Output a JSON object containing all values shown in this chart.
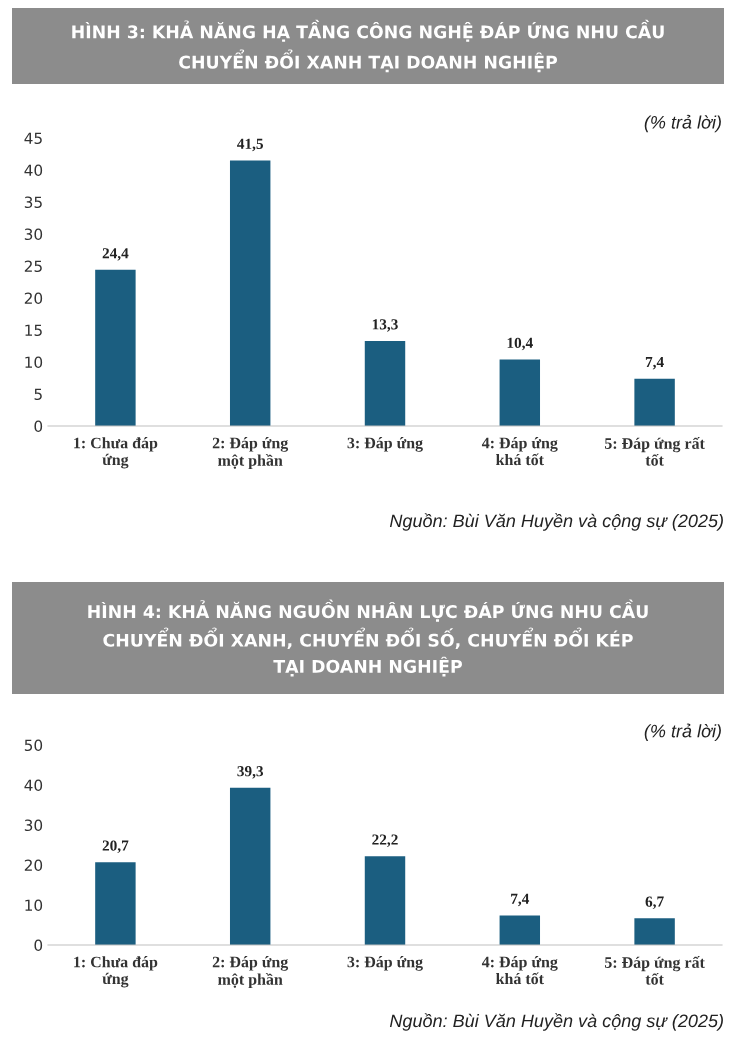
{
  "chart_data": [
    {
      "type": "bar",
      "title": "HÌNH 3: KHẢ NĂNG HẠ TẦNG CÔNG NGHỆ ĐÁP ỨNG NHU CẦU\nCHUYỂN ĐỔI XANH TẠI DOANH NGHIỆP",
      "categories": [
        "1: Chưa đáp\nứng",
        "2: Đáp ứng\nmột phần",
        "3: Đáp ứng",
        "4: Đáp ứng\nkhá tốt",
        "5: Đáp ứng rất\ntốt"
      ],
      "values": [
        24.4,
        41.5,
        13.3,
        10.4,
        7.4
      ],
      "value_labels": [
        "24,4",
        "41,5",
        "13,3",
        "10,4",
        "7,4"
      ],
      "color": "#1b5e80",
      "ylim": [
        0,
        45
      ],
      "yticks": [
        0,
        5,
        10,
        15,
        20,
        25,
        30,
        35,
        40,
        45
      ],
      "grid": false,
      "annotations": [
        "(% trả lời)",
        "Nguồn: Bùi Văn Huyền và cộng sự (2025)"
      ]
    },
    {
      "type": "bar",
      "title": "HÌNH 4: KHẢ NĂNG NGUỒN NHÂN LỰC ĐÁP ỨNG NHU CẦU\nCHUYỂN ĐỔI XANH, CHUYỂN ĐỔI SỐ, CHUYỂN ĐỔI KÉP\nTẠI DOANH NGHIỆP",
      "categories": [
        "1: Chưa đáp\nứng",
        "2: Đáp ứng\nmột phần",
        "3: Đáp ứng",
        "4: Đáp ứng\nkhá tốt",
        "5: Đáp ứng rất\ntốt"
      ],
      "values": [
        20.7,
        39.3,
        22.2,
        7.4,
        6.7
      ],
      "value_labels": [
        "20,7",
        "39,3",
        "22,2",
        "7,4",
        "6,7"
      ],
      "color": "#1b5e80",
      "ylim": [
        0,
        50
      ],
      "yticks": [
        0,
        10,
        20,
        30,
        40,
        50
      ],
      "grid": false,
      "annotations": [
        "(% trả lời)",
        "Nguồn: Bùi Văn Huyền và cộng sự (2025)"
      ]
    }
  ]
}
